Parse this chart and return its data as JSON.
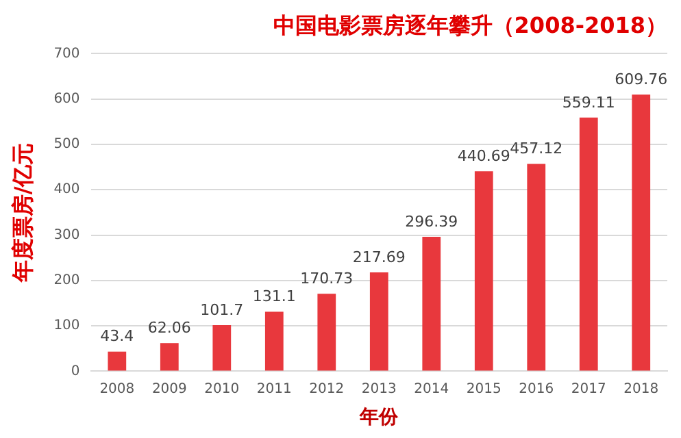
{
  "chart_data": {
    "type": "bar",
    "title": "中国电影票房逐年攀升（2008-2018）",
    "xlabel": "年份",
    "ylabel": "年度票房/亿元",
    "categories": [
      "2008",
      "2009",
      "2010",
      "2011",
      "2012",
      "2013",
      "2014",
      "2015",
      "2016",
      "2017",
      "2018"
    ],
    "values": [
      43.4,
      62.06,
      101.7,
      131.1,
      170.73,
      217.69,
      296.39,
      440.69,
      457.12,
      559.11,
      609.76
    ],
    "color": "#e8383d",
    "ylim": [
      0,
      700
    ],
    "yticks": [
      0,
      100,
      200,
      300,
      400,
      500,
      600,
      700
    ],
    "grid": "y",
    "data_labels": true,
    "legend": false
  }
}
